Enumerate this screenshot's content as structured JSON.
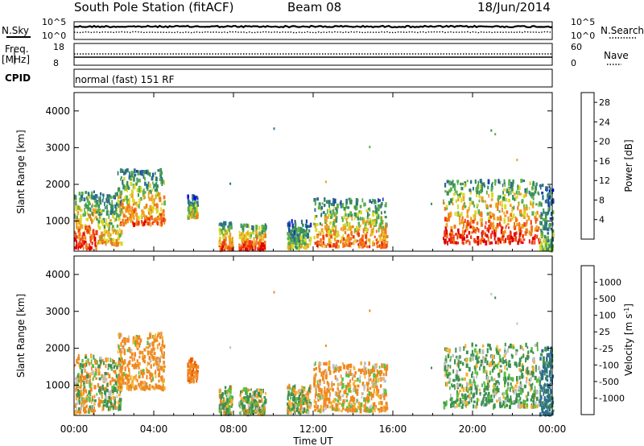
{
  "header": {
    "station": "South Pole Station (fitACF)",
    "beam": "Beam 08",
    "date": "18/Jun/2014"
  },
  "top_panels": {
    "nsky_label": "N.Sky",
    "nsearch_label": "N.Search",
    "left_ticks": [
      "10^5",
      "10^0"
    ],
    "right_ticks": [
      "10^5",
      "10^0"
    ],
    "freq_label": "Freq.",
    "freq_unit": "[MHz]",
    "freq_ticks": [
      "18",
      "8"
    ],
    "nave_label": "Nave",
    "nave_ticks": [
      "60",
      "0"
    ],
    "cpid_label": "CPID",
    "cpid_value": "normal (fast) 151 RF"
  },
  "chart_data": [
    {
      "type": "heatmap",
      "title": "Power",
      "ylabel": "Slant Range [km]",
      "xlabel": "",
      "xlim": [
        "00:00",
        "24:00"
      ],
      "ylim": [
        180,
        4500
      ],
      "y_ticks": [
        "1000",
        "2000",
        "3000",
        "4000"
      ],
      "colorbar": {
        "label": "Power [dB]",
        "ticks": [
          "28",
          "24",
          "20",
          "16",
          "12",
          "8",
          "4"
        ],
        "colors": [
          "#0000ff",
          "#1c3fa5",
          "#2d6e8c",
          "#3a8f5c",
          "#5ab04a",
          "#d9d92b",
          "#f0a020",
          "#f07818",
          "#ef3b16",
          "#e00000"
        ]
      },
      "echo_regions": [
        {
          "t_start": "00:00",
          "t_end": "01:05",
          "range_km": [
            250,
            1800
          ],
          "peak_db": 28
        },
        {
          "t_start": "01:05",
          "t_end": "02:20",
          "range_km": [
            350,
            1750
          ],
          "peak_db": 20
        },
        {
          "t_start": "02:10",
          "t_end": "04:30",
          "range_km": [
            900,
            2400
          ],
          "peak_db": 24
        },
        {
          "t_start": "05:40",
          "t_end": "06:10",
          "range_km": [
            1100,
            1700
          ],
          "peak_db": 18
        },
        {
          "t_start": "07:15",
          "t_end": "07:55",
          "range_km": [
            220,
            950
          ],
          "peak_db": 26
        },
        {
          "t_start": "08:15",
          "t_end": "09:35",
          "range_km": [
            220,
            900
          ],
          "peak_db": 28
        },
        {
          "t_start": "10:40",
          "t_end": "11:50",
          "range_km": [
            250,
            1000
          ],
          "peak_db": 16
        },
        {
          "t_start": "12:00",
          "t_end": "15:40",
          "range_km": [
            300,
            1600
          ],
          "peak_db": 24
        },
        {
          "t_start": "18:30",
          "t_end": "23:20",
          "range_km": [
            400,
            2100
          ],
          "peak_db": 28
        },
        {
          "t_start": "23:20",
          "t_end": "24:00",
          "range_km": [
            200,
            2000
          ],
          "peak_db": 14
        }
      ]
    },
    {
      "type": "heatmap",
      "title": "Velocity",
      "ylabel": "Slant Range [km]",
      "xlabel": "Time UT",
      "xlim": [
        "00:00",
        "24:00"
      ],
      "ylim": [
        180,
        4500
      ],
      "x_ticks": [
        "00:00",
        "04:00",
        "08:00",
        "12:00",
        "16:00",
        "20:00",
        "00:00"
      ],
      "y_ticks": [
        "1000",
        "2000",
        "3000",
        "4000"
      ],
      "colorbar": {
        "label": "Velocity [m s-1]",
        "label_main": "Velocity",
        "label_unit": "[m s",
        "label_exp": "-1",
        "label_end": "]",
        "ticks": [
          "1000",
          "500",
          "100",
          "25",
          "-25",
          "-100",
          "-500",
          "-1000"
        ],
        "colors": [
          "#ee0000",
          "#ee5500",
          "#f08820",
          "#f5b030",
          "#c0c0c0",
          "#58c040",
          "#3e9050",
          "#2d6e8c",
          "#2a46b8"
        ]
      },
      "echo_regions": [
        {
          "t_start": "00:00",
          "t_end": "01:05",
          "range_km": [
            250,
            1800
          ],
          "velocity": -50
        },
        {
          "t_start": "01:05",
          "t_end": "02:20",
          "range_km": [
            350,
            1750
          ],
          "velocity": 60
        },
        {
          "t_start": "02:10",
          "t_end": "04:30",
          "range_km": [
            900,
            2400
          ],
          "velocity": -200
        },
        {
          "t_start": "05:40",
          "t_end": "06:10",
          "range_km": [
            1100,
            1700
          ],
          "velocity": -400
        },
        {
          "t_start": "07:15",
          "t_end": "07:55",
          "range_km": [
            220,
            950
          ],
          "velocity": 50
        },
        {
          "t_start": "08:15",
          "t_end": "09:35",
          "range_km": [
            220,
            900
          ],
          "velocity": 60
        },
        {
          "t_start": "10:40",
          "t_end": "11:50",
          "range_km": [
            250,
            1000
          ],
          "velocity": 80
        },
        {
          "t_start": "12:00",
          "t_end": "15:40",
          "range_km": [
            300,
            1600
          ],
          "velocity": -150
        },
        {
          "t_start": "18:30",
          "t_end": "23:20",
          "range_km": [
            400,
            2100
          ],
          "velocity": 150
        },
        {
          "t_start": "23:20",
          "t_end": "24:00",
          "range_km": [
            200,
            2000
          ],
          "velocity": 600
        }
      ]
    }
  ]
}
